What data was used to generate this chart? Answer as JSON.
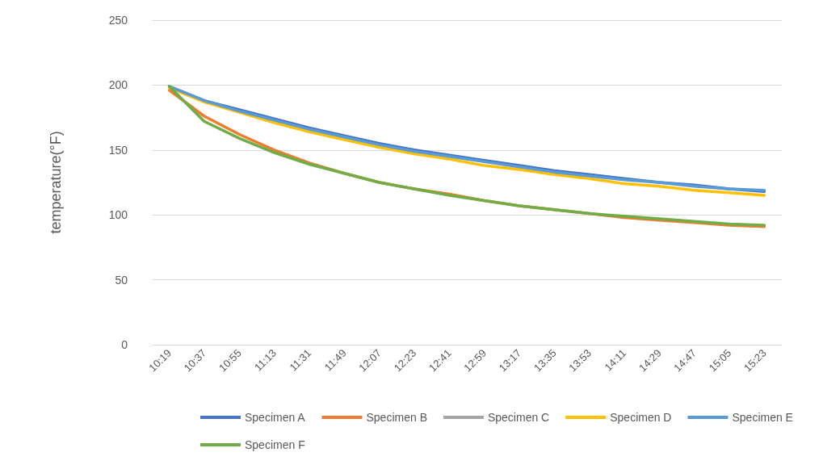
{
  "chart_data": {
    "type": "line",
    "ylabel": "temperature(°F)",
    "categories": [
      "10:19",
      "10:37",
      "10:55",
      "11:13",
      "11:31",
      "11:49",
      "12:07",
      "12:23",
      "12:41",
      "12:59",
      "13:17",
      "13:35",
      "13:53",
      "14:11",
      "14:29",
      "14:47",
      "15:05",
      "15:23"
    ],
    "ylim": [
      0,
      250
    ],
    "yticks": [
      0,
      50,
      100,
      150,
      200,
      250
    ],
    "grid": "y",
    "legend": "bottom",
    "marker": "none",
    "line_style": "solid",
    "series": [
      {
        "name": "Specimen A",
        "color": "#4472c4",
        "values": [
          199,
          188,
          181,
          174,
          167,
          161,
          155,
          150,
          146,
          142,
          138,
          134,
          131,
          128,
          125,
          123,
          120,
          118
        ]
      },
      {
        "name": "Specimen B",
        "color": "#ed7d31",
        "values": [
          196,
          176,
          162,
          150,
          140,
          132,
          125,
          120,
          116,
          111,
          107,
          104,
          101,
          98,
          96,
          94,
          92,
          91
        ]
      },
      {
        "name": "Specimen C",
        "color": "#a5a5a5",
        "values": [
          null,
          null,
          null,
          null,
          null,
          null,
          null,
          null,
          null,
          null,
          null,
          null,
          null,
          null,
          null,
          null,
          null,
          null
        ]
      },
      {
        "name": "Specimen D",
        "color": "#ffc000",
        "values": [
          198,
          187,
          179,
          171,
          164,
          158,
          152,
          147,
          143,
          138,
          135,
          131,
          128,
          124,
          122,
          119,
          117,
          115
        ]
      },
      {
        "name": "Specimen E",
        "color": "#5b9bd5",
        "values": [
          199,
          188,
          180,
          173,
          166,
          160,
          154,
          149,
          145,
          141,
          137,
          133,
          130,
          127,
          125,
          122,
          120,
          119
        ]
      },
      {
        "name": "Specimen F",
        "color": "#70ad47",
        "values": [
          199,
          172,
          159,
          148,
          139,
          132,
          125,
          120,
          115,
          111,
          107,
          104,
          101,
          99,
          97,
          95,
          93,
          92
        ]
      }
    ]
  }
}
